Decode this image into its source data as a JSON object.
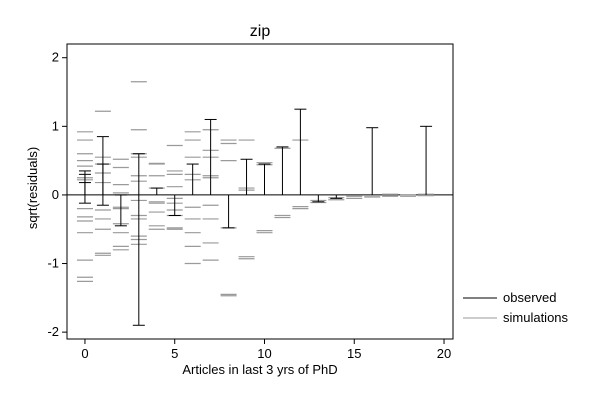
{
  "chart_data": {
    "type": "scatter",
    "title": "zip",
    "xlabel": "Articles in last 3 yrs of PhD",
    "ylabel": "sqrt(residuals)",
    "xlim": [
      -1,
      20.5
    ],
    "ylim": [
      -2.1,
      2.2
    ],
    "xticks": [
      0,
      5,
      10,
      15,
      20
    ],
    "yticks": [
      -2,
      -1,
      0,
      1,
      2
    ],
    "zero_line": true,
    "legend": {
      "placement": "right",
      "entries": [
        {
          "name": "observed",
          "color": "#000000"
        },
        {
          "name": "simulations",
          "color": "#9a9a9a"
        }
      ]
    },
    "series": [
      {
        "name": "observed",
        "style": "vertical-spikes",
        "points": [
          {
            "x": 0,
            "y": 0.35
          },
          {
            "x": 0,
            "y": 0.3
          },
          {
            "x": 0,
            "y": 0.18
          },
          {
            "x": 0,
            "y": -0.12
          },
          {
            "x": 1,
            "y": 0.85
          },
          {
            "x": 1,
            "y": 0.45
          },
          {
            "x": 1,
            "y": -0.15
          },
          {
            "x": 2,
            "y": 0.0
          },
          {
            "x": 2,
            "y": -0.45
          },
          {
            "x": 3,
            "y": 0.6
          },
          {
            "x": 3,
            "y": -1.9
          },
          {
            "x": 4,
            "y": 0.1
          },
          {
            "x": 5,
            "y": -0.3
          },
          {
            "x": 6,
            "y": 0.45
          },
          {
            "x": 7,
            "y": 1.1
          },
          {
            "x": 8,
            "y": -0.48
          },
          {
            "x": 9,
            "y": 0.52
          },
          {
            "x": 10,
            "y": 0.45
          },
          {
            "x": 11,
            "y": 0.7
          },
          {
            "x": 12,
            "y": 1.25
          },
          {
            "x": 13,
            "y": -0.1
          },
          {
            "x": 14,
            "y": -0.05
          },
          {
            "x": 16,
            "y": 0.98
          },
          {
            "x": 19,
            "y": 1.0
          }
        ]
      },
      {
        "name": "simulations",
        "style": "horizontal-ticks",
        "points": [
          {
            "x": 0,
            "y": 0.92
          },
          {
            "x": 0,
            "y": 0.8
          },
          {
            "x": 0,
            "y": 0.6
          },
          {
            "x": 0,
            "y": 0.5
          },
          {
            "x": 0,
            "y": 0.42
          },
          {
            "x": 0,
            "y": 0.25
          },
          {
            "x": 0,
            "y": 0.22
          },
          {
            "x": 0,
            "y": -0.2
          },
          {
            "x": 0,
            "y": -0.32
          },
          {
            "x": 0,
            "y": -0.38
          },
          {
            "x": 0,
            "y": -0.55
          },
          {
            "x": 0,
            "y": -0.95
          },
          {
            "x": 0,
            "y": -1.2
          },
          {
            "x": 0,
            "y": -1.26
          },
          {
            "x": 1,
            "y": 1.22
          },
          {
            "x": 1,
            "y": 0.55
          },
          {
            "x": 1,
            "y": 0.45
          },
          {
            "x": 1,
            "y": 0.32
          },
          {
            "x": 1,
            "y": 0.18
          },
          {
            "x": 1,
            "y": -0.22
          },
          {
            "x": 1,
            "y": -0.35
          },
          {
            "x": 1,
            "y": -0.5
          },
          {
            "x": 1,
            "y": -0.85
          },
          {
            "x": 1,
            "y": -0.88
          },
          {
            "x": 2,
            "y": 0.52
          },
          {
            "x": 2,
            "y": 0.4
          },
          {
            "x": 2,
            "y": 0.15
          },
          {
            "x": 2,
            "y": 0.03
          },
          {
            "x": 2,
            "y": -0.18
          },
          {
            "x": 2,
            "y": -0.2
          },
          {
            "x": 2,
            "y": -0.42
          },
          {
            "x": 2,
            "y": -0.55
          },
          {
            "x": 2,
            "y": -0.75
          },
          {
            "x": 2,
            "y": -0.8
          },
          {
            "x": 3,
            "y": 1.65
          },
          {
            "x": 3,
            "y": 0.95
          },
          {
            "x": 3,
            "y": 0.6
          },
          {
            "x": 3,
            "y": 0.55
          },
          {
            "x": 3,
            "y": 0.28
          },
          {
            "x": 3,
            "y": 0.2
          },
          {
            "x": 3,
            "y": -0.08
          },
          {
            "x": 3,
            "y": -0.3
          },
          {
            "x": 3,
            "y": -0.35
          },
          {
            "x": 3,
            "y": -0.6
          },
          {
            "x": 3,
            "y": -0.65
          },
          {
            "x": 3,
            "y": -0.72
          },
          {
            "x": 4,
            "y": 0.46
          },
          {
            "x": 4,
            "y": 0.45
          },
          {
            "x": 4,
            "y": 0.28
          },
          {
            "x": 4,
            "y": 0.1
          },
          {
            "x": 4,
            "y": -0.1
          },
          {
            "x": 4,
            "y": -0.12
          },
          {
            "x": 4,
            "y": -0.25
          },
          {
            "x": 4,
            "y": -0.45
          },
          {
            "x": 4,
            "y": -0.5
          },
          {
            "x": 5,
            "y": 0.72
          },
          {
            "x": 5,
            "y": 0.35
          },
          {
            "x": 5,
            "y": 0.3
          },
          {
            "x": 5,
            "y": 0.12
          },
          {
            "x": 5,
            "y": -0.05
          },
          {
            "x": 5,
            "y": -0.12
          },
          {
            "x": 5,
            "y": -0.22
          },
          {
            "x": 5,
            "y": -0.3
          },
          {
            "x": 5,
            "y": -0.48
          },
          {
            "x": 5,
            "y": -0.5
          },
          {
            "x": 6,
            "y": 0.92
          },
          {
            "x": 6,
            "y": 0.8
          },
          {
            "x": 6,
            "y": 0.55
          },
          {
            "x": 6,
            "y": 0.3
          },
          {
            "x": 6,
            "y": 0.22
          },
          {
            "x": 6,
            "y": -0.18
          },
          {
            "x": 6,
            "y": -0.35
          },
          {
            "x": 6,
            "y": -0.55
          },
          {
            "x": 6,
            "y": -0.75
          },
          {
            "x": 6,
            "y": -1.0
          },
          {
            "x": 7,
            "y": 0.95
          },
          {
            "x": 7,
            "y": 0.65
          },
          {
            "x": 7,
            "y": 0.55
          },
          {
            "x": 7,
            "y": 0.28
          },
          {
            "x": 7,
            "y": 0.25
          },
          {
            "x": 7,
            "y": -0.15
          },
          {
            "x": 7,
            "y": -0.35
          },
          {
            "x": 7,
            "y": -0.7
          },
          {
            "x": 7,
            "y": -0.95
          },
          {
            "x": 8,
            "y": 0.8
          },
          {
            "x": 8,
            "y": 0.75
          },
          {
            "x": 8,
            "y": 0.5
          },
          {
            "x": 8,
            "y": -0.48
          },
          {
            "x": 8,
            "y": -1.45
          },
          {
            "x": 8,
            "y": -1.47
          },
          {
            "x": 9,
            "y": 0.8
          },
          {
            "x": 9,
            "y": 0.1
          },
          {
            "x": 9,
            "y": 0.07
          },
          {
            "x": 9,
            "y": -0.9
          },
          {
            "x": 9,
            "y": -0.93
          },
          {
            "x": 10,
            "y": 0.47
          },
          {
            "x": 10,
            "y": 0.44
          },
          {
            "x": 10,
            "y": -0.52
          },
          {
            "x": 10,
            "y": -0.55
          },
          {
            "x": 11,
            "y": 0.68
          },
          {
            "x": 11,
            "y": -0.3
          },
          {
            "x": 11,
            "y": -0.33
          },
          {
            "x": 12,
            "y": 0.8
          },
          {
            "x": 12,
            "y": -0.17
          },
          {
            "x": 12,
            "y": -0.2
          },
          {
            "x": 13,
            "y": -0.08
          },
          {
            "x": 13,
            "y": -0.11
          },
          {
            "x": 14,
            "y": -0.04
          },
          {
            "x": 14,
            "y": -0.07
          },
          {
            "x": 15,
            "y": -0.02
          },
          {
            "x": 15,
            "y": -0.05
          },
          {
            "x": 16,
            "y": -0.01
          },
          {
            "x": 16,
            "y": -0.03
          },
          {
            "x": 17,
            "y": 0.01
          },
          {
            "x": 17,
            "y": -0.02
          },
          {
            "x": 18,
            "y": 0.0
          },
          {
            "x": 18,
            "y": -0.02
          },
          {
            "x": 19,
            "y": 0.01
          },
          {
            "x": 19,
            "y": -0.01
          }
        ]
      }
    ]
  }
}
